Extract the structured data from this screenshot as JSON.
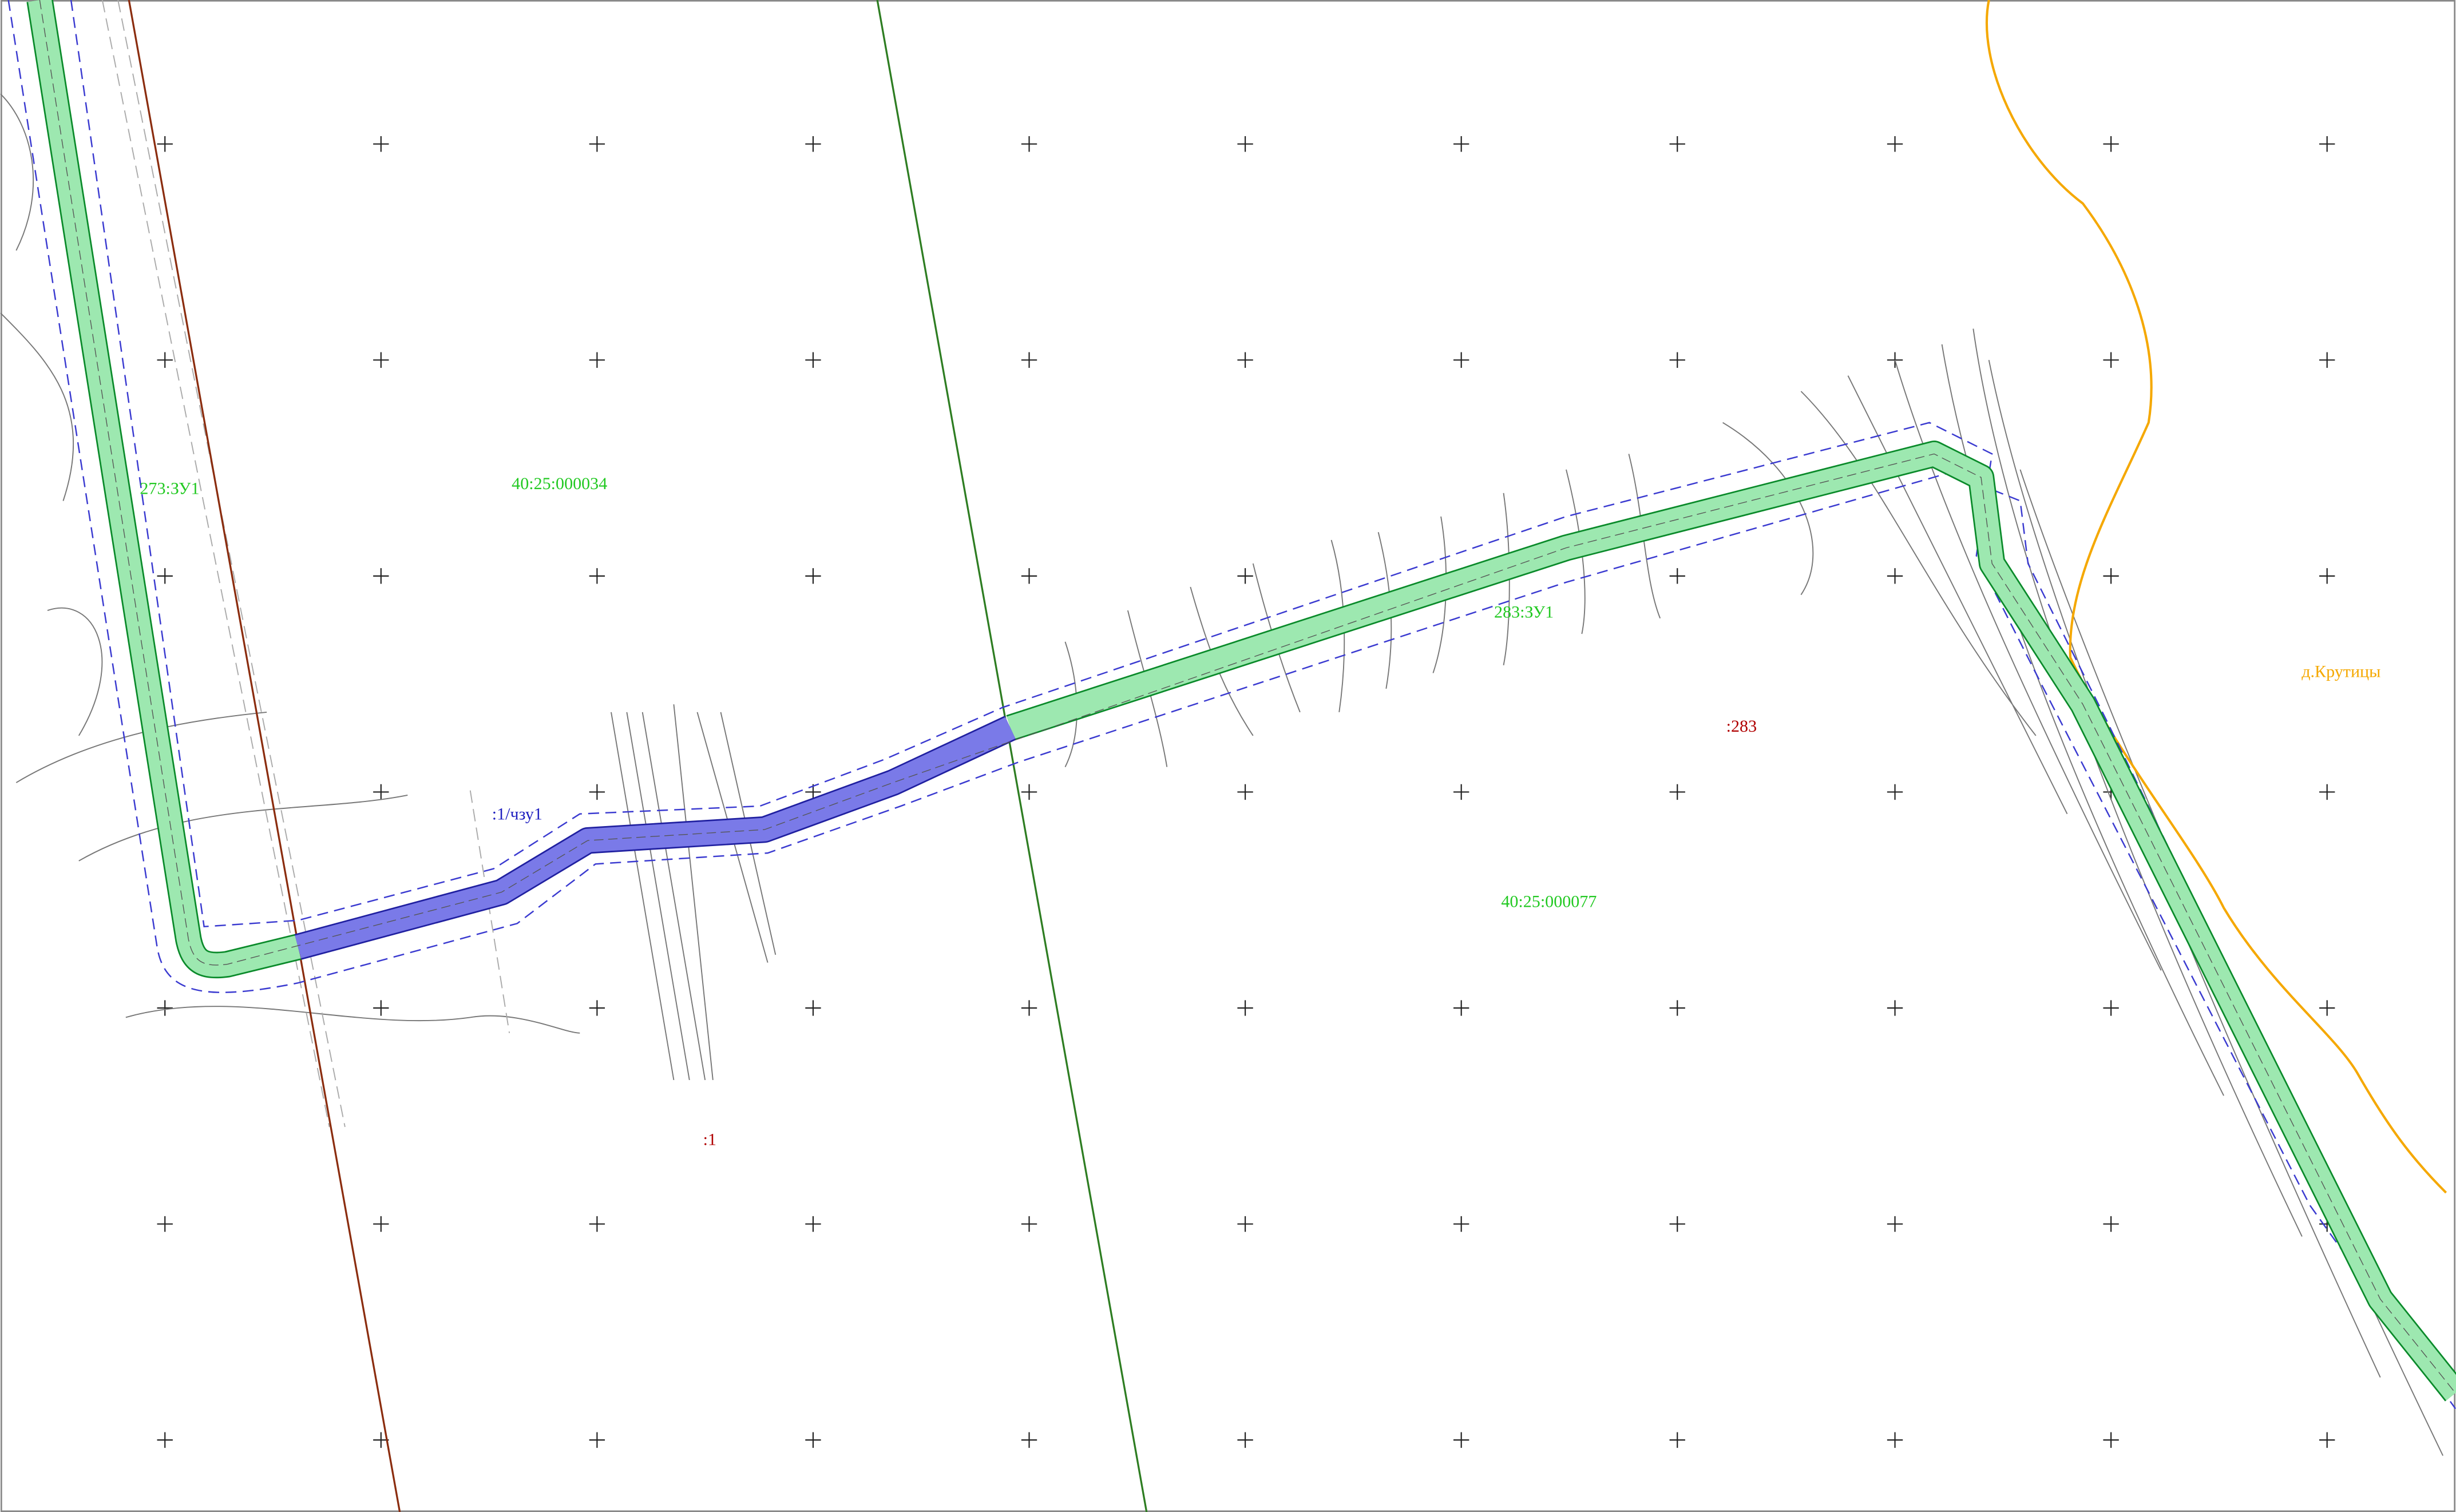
{
  "labels": {
    "block_left": "40:25:000034",
    "parcel_left": "273:ЗУ1",
    "easement": ":1/чзу1",
    "parcel_right": "283:ЗУ1",
    "parcel_283": ":283",
    "block_right": "40:25:000077",
    "parcel_1": ":1",
    "village": "д.Крутицы"
  }
}
